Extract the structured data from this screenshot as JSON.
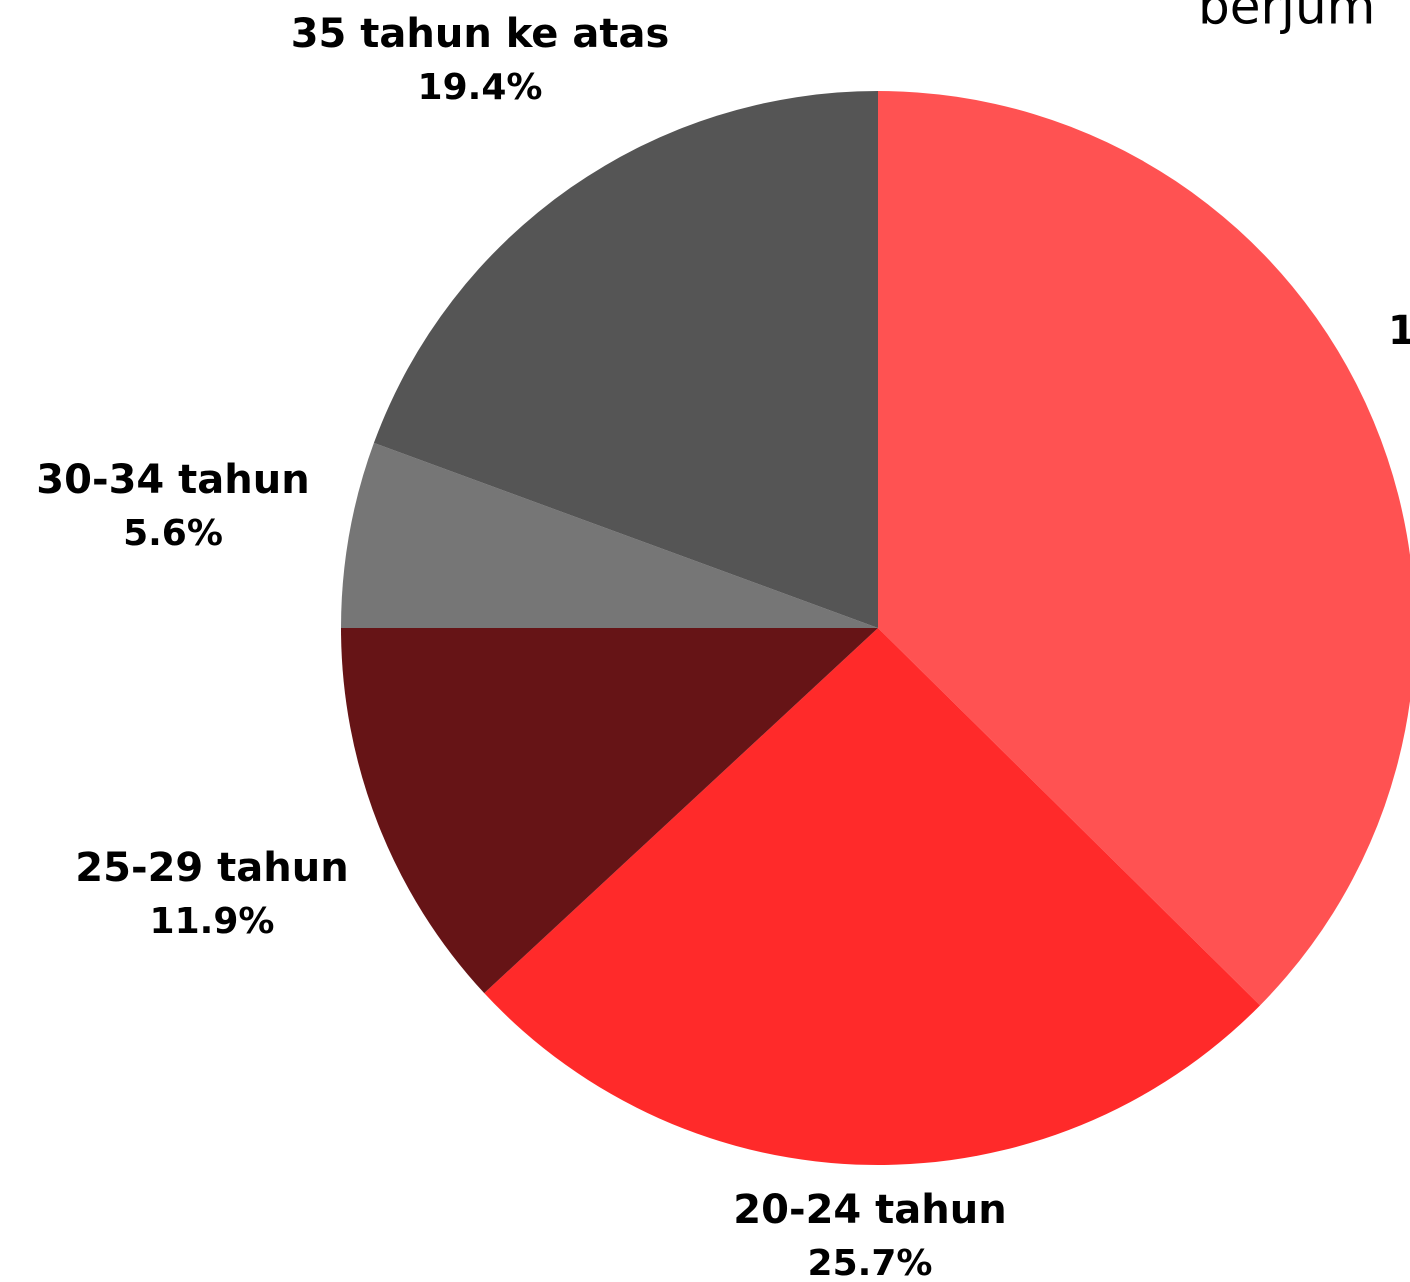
{
  "chart_data": {
    "type": "pie",
    "title": "berjum",
    "categories": [
      "1",
      "20-24 tahun",
      "25-29 tahun",
      "30-34 tahun",
      "35 tahun ke atas"
    ],
    "values": [
      37.4,
      25.7,
      11.9,
      5.6,
      19.4
    ],
    "value_labels": [
      null,
      "25.7%",
      "11.9%",
      "5.6%",
      "19.4%"
    ],
    "colors": [
      "#ff5252",
      "#ff2a2a",
      "#661416",
      "#767676",
      "#555555"
    ]
  }
}
